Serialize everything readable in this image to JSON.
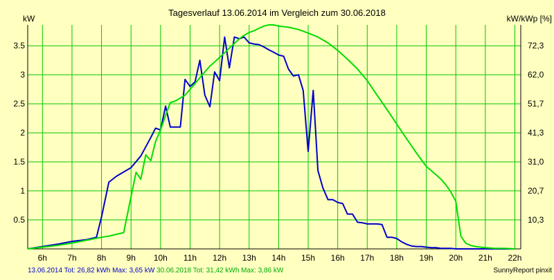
{
  "chart_data": {
    "type": "line",
    "title": "Tagesverlauf 13.06.2014 im Vergleich zum 30.06.2018",
    "ylabel_left": "kW",
    "ylabel_right": "kW/kWp [%]",
    "ylim": [
      0,
      3.86
    ],
    "xlim": [
      5.5,
      22.2
    ],
    "y_ticks": [
      0.5,
      1,
      1.5,
      2,
      2.5,
      3,
      3.5
    ],
    "y_tick_labels": [
      "0.5",
      "1",
      "1.5",
      "2",
      "2.5",
      "3",
      "3.5"
    ],
    "y2_tick_labels": [
      "10,3",
      "20,7",
      "31,0",
      "41,3",
      "51,7",
      "62,0",
      "72,3"
    ],
    "x_ticks": [
      6,
      7,
      8,
      9,
      10,
      11,
      12,
      13,
      14,
      15,
      16,
      17,
      18,
      19,
      20,
      21,
      22
    ],
    "x_tick_labels": [
      "6h",
      "7h",
      "8h",
      "9h",
      "10h",
      "11h",
      "12h",
      "13h",
      "14h",
      "15h",
      "16h",
      "17h",
      "18h",
      "19h",
      "20h",
      "21h",
      "22h"
    ],
    "grid": true,
    "series": [
      {
        "name": "13.06.2014",
        "color": "#0000C8",
        "x": [
          5.5,
          6.0,
          6.5,
          7.0,
          7.5,
          7.83,
          8.0,
          8.25,
          8.5,
          9.0,
          9.33,
          9.67,
          9.83,
          10.0,
          10.17,
          10.33,
          10.67,
          10.83,
          11.0,
          11.17,
          11.33,
          11.5,
          11.67,
          11.83,
          12.0,
          12.17,
          12.33,
          12.5,
          12.67,
          12.83,
          13.0,
          13.17,
          13.33,
          13.5,
          13.67,
          13.83,
          14.0,
          14.17,
          14.33,
          14.5,
          14.67,
          14.83,
          15.0,
          15.17,
          15.33,
          15.5,
          15.67,
          15.83,
          16.0,
          16.17,
          16.33,
          16.5,
          16.67,
          16.83,
          17.0,
          17.17,
          17.33,
          17.5,
          17.67,
          17.83,
          18.0,
          18.17,
          18.33,
          18.5,
          18.67,
          18.83,
          19.0,
          19.17,
          19.33,
          19.5,
          19.67,
          19.83,
          20.0,
          20.17,
          20.33,
          20.5,
          20.67,
          20.83,
          21.0,
          21.17,
          21.33,
          21.5,
          21.67,
          21.83,
          22.0
        ],
        "y": [
          0.0,
          0.04,
          0.08,
          0.13,
          0.16,
          0.2,
          0.55,
          1.15,
          1.25,
          1.4,
          1.6,
          1.92,
          2.08,
          2.05,
          2.46,
          2.1,
          2.1,
          2.92,
          2.8,
          2.88,
          3.25,
          2.65,
          2.45,
          3.05,
          2.9,
          3.65,
          3.12,
          3.65,
          3.62,
          3.65,
          3.55,
          3.53,
          3.52,
          3.48,
          3.43,
          3.39,
          3.34,
          3.32,
          3.1,
          2.98,
          3.0,
          2.73,
          1.68,
          2.73,
          1.35,
          1.05,
          0.85,
          0.85,
          0.8,
          0.78,
          0.6,
          0.6,
          0.46,
          0.45,
          0.43,
          0.43,
          0.43,
          0.42,
          0.2,
          0.2,
          0.18,
          0.12,
          0.08,
          0.05,
          0.04,
          0.04,
          0.03,
          0.02,
          0.02,
          0.01,
          0.01,
          0.01,
          0.0,
          0.0,
          0.0,
          0.0,
          0.0,
          0.0,
          0.0,
          0.0,
          0.0,
          0.0,
          0.0,
          0.0,
          0.0
        ]
      },
      {
        "name": "30.06.2018",
        "color": "#00DD00",
        "x": [
          5.5,
          6.0,
          6.5,
          7.0,
          7.5,
          8.0,
          8.25,
          8.5,
          8.75,
          9.0,
          9.17,
          9.33,
          9.5,
          9.67,
          9.83,
          10.0,
          10.17,
          10.33,
          10.5,
          10.67,
          10.83,
          11.0,
          11.17,
          11.33,
          11.5,
          11.67,
          11.83,
          12.0,
          12.17,
          12.33,
          12.5,
          12.67,
          12.83,
          13.0,
          13.17,
          13.33,
          13.5,
          13.67,
          13.83,
          14.0,
          14.33,
          14.67,
          15.0,
          15.33,
          15.67,
          16.0,
          16.33,
          16.67,
          17.0,
          17.33,
          17.67,
          18.0,
          18.33,
          18.67,
          19.0,
          19.33,
          19.5,
          19.67,
          19.83,
          20.0,
          20.17,
          20.33,
          20.5,
          20.67,
          21.0,
          21.33,
          21.67,
          22.0
        ],
        "y": [
          0.0,
          0.03,
          0.06,
          0.1,
          0.15,
          0.2,
          0.22,
          0.25,
          0.28,
          0.9,
          1.32,
          1.2,
          1.62,
          1.52,
          1.85,
          2.05,
          2.3,
          2.52,
          2.55,
          2.6,
          2.65,
          2.75,
          2.85,
          2.95,
          3.05,
          3.15,
          3.22,
          3.3,
          3.38,
          3.46,
          3.54,
          3.62,
          3.68,
          3.73,
          3.76,
          3.8,
          3.84,
          3.86,
          3.86,
          3.84,
          3.82,
          3.78,
          3.72,
          3.65,
          3.55,
          3.42,
          3.27,
          3.1,
          2.9,
          2.65,
          2.4,
          2.15,
          1.9,
          1.65,
          1.42,
          1.28,
          1.2,
          1.1,
          0.98,
          0.82,
          0.22,
          0.1,
          0.06,
          0.04,
          0.02,
          0.01,
          0.01,
          0.0
        ]
      }
    ],
    "footer_left": [
      {
        "text": "13.06.2014 Tot: 26,82 kWh Max: 3,65 kW",
        "color": "#0000C8"
      },
      {
        "text": " 30.06.2018 Tot: 31,42 kWh Max: 3,86 kW",
        "color": "#00AA00"
      }
    ],
    "footer_right": "SunnyReport pinxit"
  }
}
